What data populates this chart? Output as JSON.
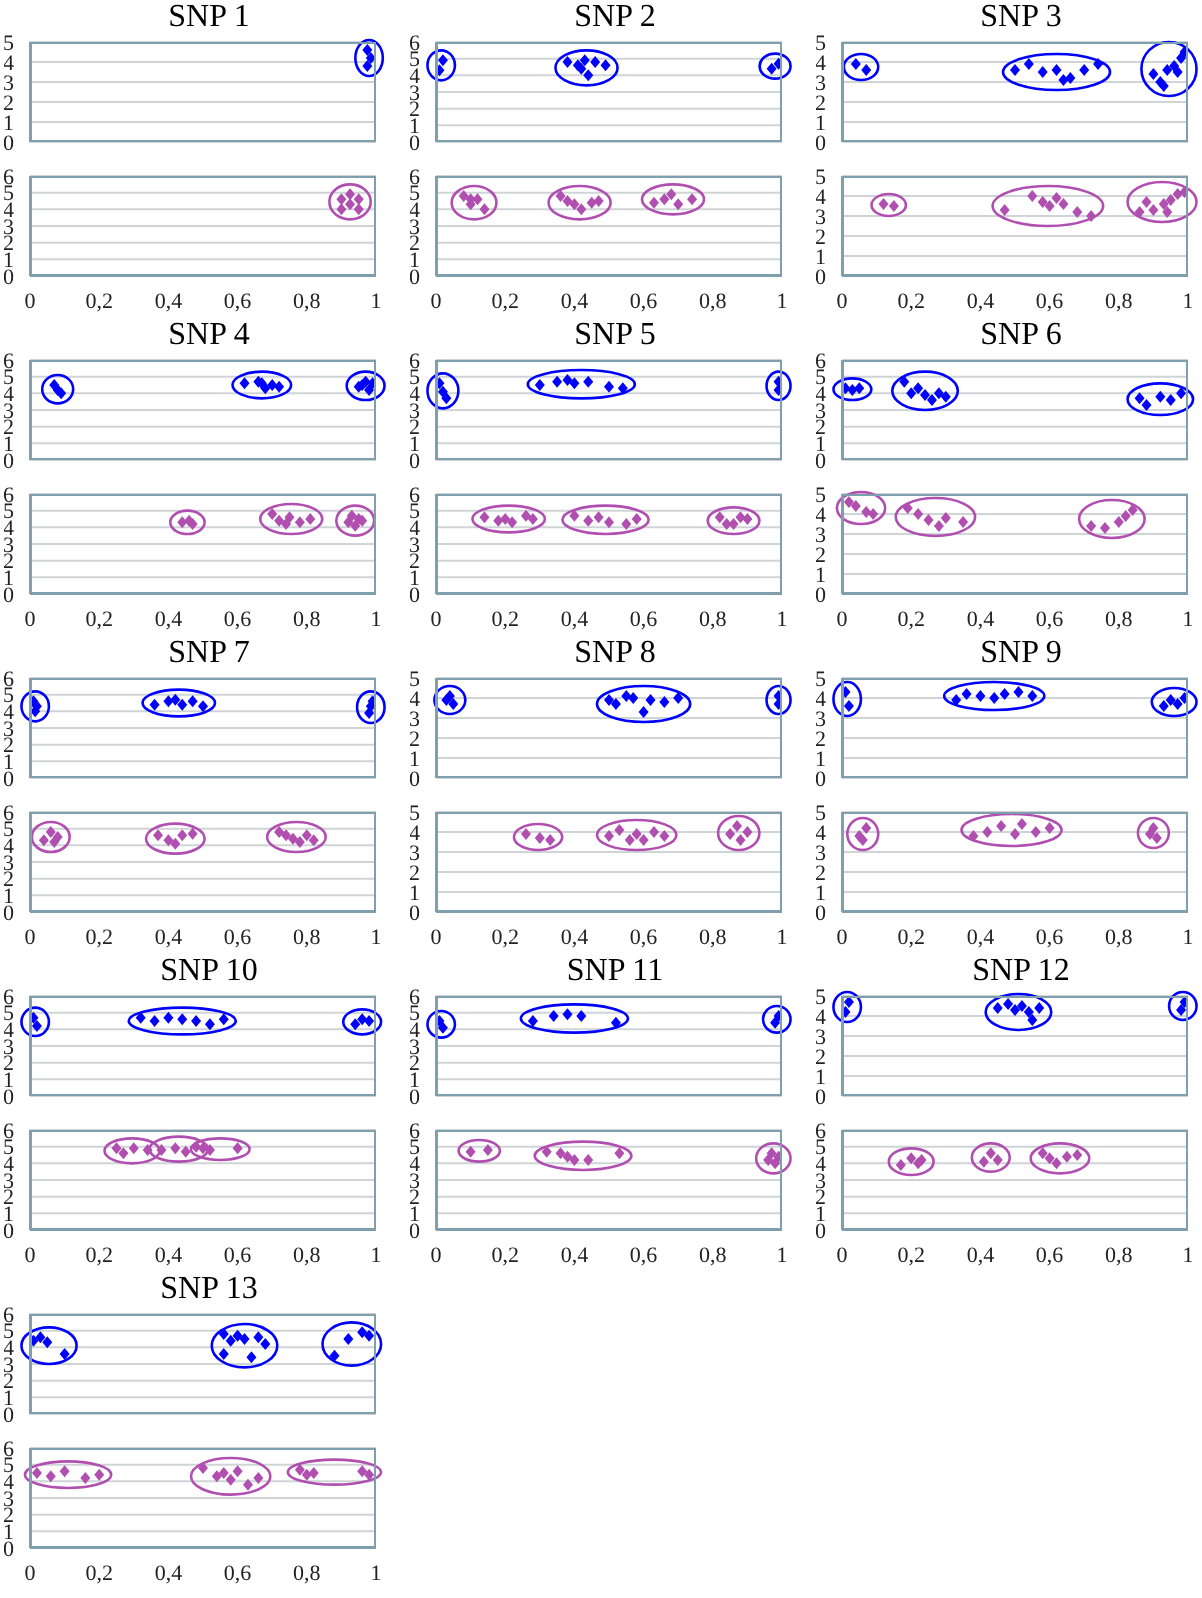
{
  "chart_data": [
    {
      "type": "scatter",
      "title": "SNP 1",
      "xlim": [
        0,
        1
      ],
      "ylim": [
        0,
        5
      ],
      "yticks": [
        0,
        1,
        2,
        3,
        4,
        5
      ],
      "grid": "y",
      "marker": "diamond",
      "tick_labels": "y",
      "series": [
        {
          "color": "#0000ff",
          "x": [
            0.975,
            0.985,
            0.975
          ],
          "values": [
            4.6,
            4.2,
            3.8
          ]
        }
      ]
    },
    {
      "type": "scatter",
      "xlim": [
        0,
        1
      ],
      "xticks": [
        {
          "value": 0,
          "label": "0"
        },
        {
          "value": 0.2,
          "label": "0,2"
        },
        {
          "value": 0.4,
          "label": "0,4"
        },
        {
          "value": 0.6,
          "label": "0,6"
        },
        {
          "value": 0.8,
          "label": "0,8"
        },
        {
          "value": 1,
          "label": "1"
        }
      ],
      "ylim": [
        0,
        6
      ],
      "yticks": [
        0,
        1,
        2,
        3,
        4,
        5,
        6
      ],
      "grid": "y",
      "marker": "diamond",
      "series": [
        {
          "color": "#b04fb0",
          "x": [
            0.9,
            0.9,
            0.925,
            0.925,
            0.95,
            0.95
          ],
          "values": [
            4.0,
            4.6,
            4.9,
            4.3,
            4.6,
            4.0
          ]
        }
      ]
    },
    {
      "type": "scatter",
      "title": "SNP 2",
      "xlim": [
        0,
        1
      ],
      "ylim": [
        0,
        6
      ],
      "yticks": [
        0,
        1,
        2,
        3,
        4,
        5,
        6
      ],
      "grid": "y",
      "marker": "diamond",
      "tick_labels": "y",
      "series": [
        {
          "color": "#0000ff",
          "x": [
            0.01,
            0.02
          ],
          "values": [
            4.3,
            4.9
          ]
        },
        {
          "color": "#0000ff",
          "x": [
            0.38,
            0.41,
            0.43,
            0.44,
            0.46,
            0.49,
            0.42
          ],
          "values": [
            4.8,
            4.6,
            4.9,
            4.0,
            4.8,
            4.6,
            4.4
          ]
        },
        {
          "color": "#0000ff",
          "x": [
            0.97,
            0.99
          ],
          "values": [
            4.4,
            4.7
          ]
        }
      ]
    },
    {
      "type": "scatter",
      "xlim": [
        0,
        1
      ],
      "xticks": [
        {
          "value": 0,
          "label": "0"
        },
        {
          "value": 0.2,
          "label": "0,2"
        },
        {
          "value": 0.4,
          "label": "0,4"
        },
        {
          "value": 0.6,
          "label": "0,6"
        },
        {
          "value": 0.8,
          "label": "0,8"
        },
        {
          "value": 1,
          "label": "1"
        }
      ],
      "ylim": [
        0,
        6
      ],
      "yticks": [
        0,
        1,
        2,
        3,
        4,
        5,
        6
      ],
      "grid": "y",
      "marker": "diamond",
      "series": [
        {
          "color": "#b04fb0",
          "x": [
            0.08,
            0.1,
            0.12,
            0.14,
            0.1
          ],
          "values": [
            4.8,
            4.3,
            4.6,
            4.0,
            4.6
          ]
        },
        {
          "color": "#b04fb0",
          "x": [
            0.36,
            0.38,
            0.4,
            0.42,
            0.45,
            0.47
          ],
          "values": [
            4.8,
            4.5,
            4.3,
            4.0,
            4.4,
            4.5
          ]
        },
        {
          "color": "#b04fb0",
          "x": [
            0.63,
            0.66,
            0.68,
            0.7,
            0.74
          ],
          "values": [
            4.4,
            4.6,
            4.9,
            4.3,
            4.6
          ]
        }
      ]
    },
    {
      "type": "scatter",
      "title": "SNP 3",
      "xlim": [
        0,
        1
      ],
      "ylim": [
        0,
        5
      ],
      "yticks": [
        0,
        1,
        2,
        3,
        4,
        5
      ],
      "grid": "y",
      "marker": "diamond",
      "tick_labels": "y",
      "series": [
        {
          "color": "#0000ff",
          "x": [
            0.04,
            0.07
          ],
          "values": [
            3.9,
            3.6
          ]
        },
        {
          "color": "#0000ff",
          "x": [
            0.5,
            0.54,
            0.58,
            0.62,
            0.66,
            0.7,
            0.74,
            0.64
          ],
          "values": [
            3.6,
            3.9,
            3.5,
            3.6,
            3.2,
            3.6,
            3.9,
            3.1
          ]
        },
        {
          "color": "#0000ff",
          "x": [
            0.9,
            0.92,
            0.94,
            0.96,
            0.98,
            0.99,
            0.93,
            0.97
          ],
          "values": [
            3.4,
            3.0,
            3.6,
            3.8,
            4.2,
            4.5,
            2.8,
            3.5
          ]
        }
      ]
    },
    {
      "type": "scatter",
      "xlim": [
        0,
        1
      ],
      "xticks": [
        {
          "value": 0,
          "label": "0"
        },
        {
          "value": 0.2,
          "label": "0,2"
        },
        {
          "value": 0.4,
          "label": "0,4"
        },
        {
          "value": 0.6,
          "label": "0,6"
        },
        {
          "value": 0.8,
          "label": "0,8"
        },
        {
          "value": 1,
          "label": "1"
        }
      ],
      "ylim": [
        0,
        5
      ],
      "yticks": [
        0,
        1,
        2,
        3,
        4,
        5
      ],
      "grid": "y",
      "marker": "diamond",
      "series": [
        {
          "color": "#b04fb0",
          "x": [
            0.12,
            0.15
          ],
          "values": [
            3.6,
            3.5
          ]
        },
        {
          "color": "#b04fb0",
          "x": [
            0.47,
            0.55,
            0.6,
            0.62,
            0.64,
            0.68,
            0.72,
            0.58
          ],
          "values": [
            3.3,
            4.0,
            3.5,
            3.9,
            3.6,
            3.2,
            3.0,
            3.7
          ]
        },
        {
          "color": "#b04fb0",
          "x": [
            0.86,
            0.88,
            0.9,
            0.93,
            0.95,
            0.97,
            0.99,
            0.94
          ],
          "values": [
            3.2,
            3.7,
            3.3,
            3.6,
            3.8,
            4.1,
            4.2,
            3.2
          ]
        }
      ]
    },
    {
      "type": "scatter",
      "title": "SNP 4",
      "xlim": [
        0,
        1
      ],
      "ylim": [
        0,
        6
      ],
      "yticks": [
        0,
        1,
        2,
        3,
        4,
        5,
        6
      ],
      "grid": "y",
      "marker": "diamond",
      "tick_labels": "y",
      "series": [
        {
          "color": "#0000ff",
          "x": [
            0.07,
            0.08,
            0.09
          ],
          "values": [
            4.5,
            4.2,
            4.0
          ]
        },
        {
          "color": "#0000ff",
          "x": [
            0.62,
            0.66,
            0.68,
            0.7,
            0.72,
            0.67
          ],
          "values": [
            4.6,
            4.7,
            4.3,
            4.5,
            4.4,
            4.6
          ]
        },
        {
          "color": "#0000ff",
          "x": [
            0.95,
            0.97,
            0.98,
            0.96,
            0.99
          ],
          "values": [
            4.4,
            4.7,
            4.2,
            4.5,
            4.6
          ]
        }
      ]
    },
    {
      "type": "scatter",
      "xlim": [
        0,
        1
      ],
      "xticks": [
        {
          "value": 0,
          "label": "0"
        },
        {
          "value": 0.2,
          "label": "0,2"
        },
        {
          "value": 0.4,
          "label": "0,4"
        },
        {
          "value": 0.6,
          "label": "0,6"
        },
        {
          "value": 0.8,
          "label": "0,8"
        },
        {
          "value": 1,
          "label": "1"
        }
      ],
      "ylim": [
        0,
        6
      ],
      "yticks": [
        0,
        1,
        2,
        3,
        4,
        5,
        6
      ],
      "grid": "y",
      "marker": "diamond",
      "series": [
        {
          "color": "#b04fb0",
          "x": [
            0.44,
            0.46,
            0.47
          ],
          "values": [
            4.3,
            4.4,
            4.2
          ]
        },
        {
          "color": "#b04fb0",
          "x": [
            0.7,
            0.72,
            0.74,
            0.78,
            0.81,
            0.75
          ],
          "values": [
            4.8,
            4.4,
            4.2,
            4.3,
            4.5,
            4.6
          ]
        },
        {
          "color": "#b04fb0",
          "x": [
            0.92,
            0.93,
            0.94,
            0.95,
            0.96
          ],
          "values": [
            4.3,
            4.7,
            4.1,
            4.5,
            4.4
          ]
        }
      ]
    },
    {
      "type": "scatter",
      "title": "SNP 5",
      "xlim": [
        0,
        1
      ],
      "ylim": [
        0,
        6
      ],
      "yticks": [
        0,
        1,
        2,
        3,
        4,
        5,
        6
      ],
      "grid": "y",
      "marker": "diamond",
      "tick_labels": "y",
      "series": [
        {
          "color": "#0000ff",
          "x": [
            0.01,
            0.02,
            0.03
          ],
          "values": [
            4.6,
            4.1,
            3.7
          ]
        },
        {
          "color": "#0000ff",
          "x": [
            0.3,
            0.35,
            0.38,
            0.4,
            0.44,
            0.5,
            0.54
          ],
          "values": [
            4.5,
            4.7,
            4.8,
            4.6,
            4.7,
            4.4,
            4.3
          ]
        },
        {
          "color": "#0000ff",
          "x": [
            0.99,
            0.99
          ],
          "values": [
            4.7,
            4.2
          ]
        }
      ]
    },
    {
      "type": "scatter",
      "xlim": [
        0,
        1
      ],
      "xticks": [
        {
          "value": 0,
          "label": "0"
        },
        {
          "value": 0.2,
          "label": "0,2"
        },
        {
          "value": 0.4,
          "label": "0,4"
        },
        {
          "value": 0.6,
          "label": "0,6"
        },
        {
          "value": 0.8,
          "label": "0,8"
        },
        {
          "value": 1,
          "label": "1"
        }
      ],
      "ylim": [
        0,
        6
      ],
      "yticks": [
        0,
        1,
        2,
        3,
        4,
        5,
        6
      ],
      "grid": "y",
      "marker": "diamond",
      "series": [
        {
          "color": "#b04fb0",
          "x": [
            0.14,
            0.18,
            0.2,
            0.22,
            0.26,
            0.28
          ],
          "values": [
            4.6,
            4.4,
            4.5,
            4.3,
            4.7,
            4.5
          ]
        },
        {
          "color": "#b04fb0",
          "x": [
            0.4,
            0.44,
            0.47,
            0.5,
            0.55,
            0.58
          ],
          "values": [
            4.7,
            4.4,
            4.6,
            4.3,
            4.2,
            4.5
          ]
        },
        {
          "color": "#b04fb0",
          "x": [
            0.82,
            0.84,
            0.86,
            0.88,
            0.9
          ],
          "values": [
            4.6,
            4.2,
            4.2,
            4.6,
            4.5
          ]
        }
      ]
    },
    {
      "type": "scatter",
      "title": "SNP 6",
      "xlim": [
        0,
        1
      ],
      "ylim": [
        0,
        6
      ],
      "yticks": [
        0,
        1,
        2,
        3,
        4,
        5,
        6
      ],
      "grid": "y",
      "marker": "diamond",
      "tick_labels": "y",
      "series": [
        {
          "color": "#0000ff",
          "x": [
            0.01,
            0.03,
            0.05
          ],
          "values": [
            4.3,
            4.2,
            4.3
          ]
        },
        {
          "color": "#0000ff",
          "x": [
            0.18,
            0.2,
            0.22,
            0.24,
            0.26,
            0.28,
            0.3
          ],
          "values": [
            4.7,
            4.0,
            4.3,
            3.9,
            3.6,
            4.0,
            3.8
          ]
        },
        {
          "color": "#0000ff",
          "x": [
            0.86,
            0.88,
            0.92,
            0.95,
            0.98
          ],
          "values": [
            3.7,
            3.3,
            3.8,
            3.6,
            4.0
          ]
        }
      ]
    },
    {
      "type": "scatter",
      "xlim": [
        0,
        1
      ],
      "xticks": [
        {
          "value": 0,
          "label": "0"
        },
        {
          "value": 0.2,
          "label": "0,2"
        },
        {
          "value": 0.4,
          "label": "0,4"
        },
        {
          "value": 0.6,
          "label": "0,6"
        },
        {
          "value": 0.8,
          "label": "0,8"
        },
        {
          "value": 1,
          "label": "1"
        }
      ],
      "ylim": [
        0,
        5
      ],
      "yticks": [
        0,
        1,
        2,
        3,
        4,
        5
      ],
      "grid": "y",
      "marker": "diamond",
      "series": [
        {
          "color": "#b04fb0",
          "x": [
            0.02,
            0.04,
            0.07,
            0.09
          ],
          "values": [
            4.6,
            4.4,
            4.1,
            4.0
          ]
        },
        {
          "color": "#b04fb0",
          "x": [
            0.19,
            0.22,
            0.25,
            0.28,
            0.3,
            0.35
          ],
          "values": [
            4.3,
            4.0,
            3.7,
            3.4,
            3.8,
            3.6
          ]
        },
        {
          "color": "#b04fb0",
          "x": [
            0.72,
            0.76,
            0.8,
            0.82,
            0.84
          ],
          "values": [
            3.4,
            3.3,
            3.6,
            3.9,
            4.2
          ]
        }
      ]
    },
    {
      "type": "scatter",
      "title": "SNP 7",
      "xlim": [
        0,
        1
      ],
      "ylim": [
        0,
        6
      ],
      "yticks": [
        0,
        1,
        2,
        3,
        4,
        5,
        6
      ],
      "grid": "y",
      "marker": "diamond",
      "tick_labels": "y",
      "series": [
        {
          "color": "#0000ff",
          "x": [
            0.01,
            0.02,
            0.015
          ],
          "values": [
            4.6,
            4.3,
            4.0
          ]
        },
        {
          "color": "#0000ff",
          "x": [
            0.36,
            0.4,
            0.42,
            0.44,
            0.47,
            0.5
          ],
          "values": [
            4.4,
            4.6,
            4.7,
            4.4,
            4.6,
            4.3
          ]
        },
        {
          "color": "#0000ff",
          "x": [
            0.98,
            0.99,
            0.985
          ],
          "values": [
            3.9,
            4.6,
            4.3
          ]
        }
      ]
    },
    {
      "type": "scatter",
      "xlim": [
        0,
        1
      ],
      "xticks": [
        {
          "value": 0,
          "label": "0"
        },
        {
          "value": 0.2,
          "label": "0,2"
        },
        {
          "value": 0.4,
          "label": "0,4"
        },
        {
          "value": 0.6,
          "label": "0,6"
        },
        {
          "value": 0.8,
          "label": "0,8"
        },
        {
          "value": 1,
          "label": "1"
        }
      ],
      "ylim": [
        0,
        6
      ],
      "yticks": [
        0,
        1,
        2,
        3,
        4,
        5,
        6
      ],
      "grid": "y",
      "marker": "diamond",
      "series": [
        {
          "color": "#b04fb0",
          "x": [
            0.04,
            0.06,
            0.07,
            0.08
          ],
          "values": [
            4.3,
            4.8,
            4.2,
            4.5
          ]
        },
        {
          "color": "#b04fb0",
          "x": [
            0.37,
            0.4,
            0.42,
            0.44,
            0.47
          ],
          "values": [
            4.6,
            4.3,
            4.1,
            4.6,
            4.7
          ]
        },
        {
          "color": "#b04fb0",
          "x": [
            0.72,
            0.74,
            0.76,
            0.78,
            0.82,
            0.8
          ],
          "values": [
            4.8,
            4.6,
            4.4,
            4.2,
            4.3,
            4.6
          ]
        }
      ]
    },
    {
      "type": "scatter",
      "title": "SNP 8",
      "xlim": [
        0,
        1
      ],
      "ylim": [
        0,
        5
      ],
      "yticks": [
        0,
        1,
        2,
        3,
        4,
        5
      ],
      "grid": "y",
      "marker": "diamond",
      "tick_labels": "y",
      "series": [
        {
          "color": "#0000ff",
          "x": [
            0.03,
            0.05,
            0.04
          ],
          "values": [
            3.9,
            3.7,
            4.1
          ]
        },
        {
          "color": "#0000ff",
          "x": [
            0.5,
            0.52,
            0.55,
            0.57,
            0.6,
            0.62,
            0.66,
            0.7
          ],
          "values": [
            3.9,
            3.7,
            4.1,
            4.0,
            3.3,
            3.9,
            3.8,
            4.0
          ]
        },
        {
          "color": "#0000ff",
          "x": [
            0.99,
            0.99
          ],
          "values": [
            3.7,
            4.1
          ]
        }
      ]
    },
    {
      "type": "scatter",
      "xlim": [
        0,
        1
      ],
      "xticks": [
        {
          "value": 0,
          "label": "0"
        },
        {
          "value": 0.2,
          "label": "0,2"
        },
        {
          "value": 0.4,
          "label": "0,4"
        },
        {
          "value": 0.6,
          "label": "0,6"
        },
        {
          "value": 0.8,
          "label": "0,8"
        },
        {
          "value": 1,
          "label": "1"
        }
      ],
      "ylim": [
        0,
        5
      ],
      "yticks": [
        0,
        1,
        2,
        3,
        4,
        5
      ],
      "grid": "y",
      "marker": "diamond",
      "series": [
        {
          "color": "#b04fb0",
          "x": [
            0.26,
            0.3,
            0.33
          ],
          "values": [
            3.9,
            3.7,
            3.6
          ]
        },
        {
          "color": "#b04fb0",
          "x": [
            0.5,
            0.53,
            0.56,
            0.58,
            0.6,
            0.63,
            0.66
          ],
          "values": [
            3.8,
            4.1,
            3.6,
            3.9,
            3.6,
            4.0,
            3.8
          ]
        },
        {
          "color": "#b04fb0",
          "x": [
            0.85,
            0.87,
            0.88,
            0.9
          ],
          "values": [
            3.9,
            4.3,
            3.6,
            4.0
          ]
        }
      ]
    },
    {
      "type": "scatter",
      "title": "SNP 9",
      "xlim": [
        0,
        1
      ],
      "ylim": [
        0,
        5
      ],
      "yticks": [
        0,
        1,
        2,
        3,
        4,
        5
      ],
      "grid": "y",
      "marker": "diamond",
      "tick_labels": "y",
      "series": [
        {
          "color": "#0000ff",
          "x": [
            0.01,
            0.02
          ],
          "values": [
            4.3,
            3.6
          ]
        },
        {
          "color": "#0000ff",
          "x": [
            0.33,
            0.36,
            0.4,
            0.44,
            0.47,
            0.51,
            0.55
          ],
          "values": [
            3.9,
            4.2,
            4.1,
            4.0,
            4.2,
            4.3,
            4.1
          ]
        },
        {
          "color": "#0000ff",
          "x": [
            0.93,
            0.95,
            0.97,
            0.99
          ],
          "values": [
            3.6,
            3.9,
            3.7,
            4.0
          ]
        }
      ]
    },
    {
      "type": "scatter",
      "xlim": [
        0,
        1
      ],
      "xticks": [
        {
          "value": 0,
          "label": "0"
        },
        {
          "value": 0.2,
          "label": "0,2"
        },
        {
          "value": 0.4,
          "label": "0,4"
        },
        {
          "value": 0.6,
          "label": "0,6"
        },
        {
          "value": 0.8,
          "label": "0,8"
        },
        {
          "value": 1,
          "label": "1"
        }
      ],
      "ylim": [
        0,
        5
      ],
      "yticks": [
        0,
        1,
        2,
        3,
        4,
        5
      ],
      "grid": "y",
      "marker": "diamond",
      "series": [
        {
          "color": "#b04fb0",
          "x": [
            0.05,
            0.07,
            0.06
          ],
          "values": [
            3.8,
            4.2,
            3.6
          ]
        },
        {
          "color": "#b04fb0",
          "x": [
            0.38,
            0.42,
            0.46,
            0.5,
            0.52,
            0.56,
            0.6
          ],
          "values": [
            3.8,
            4.0,
            4.3,
            3.9,
            4.4,
            4.0,
            4.2
          ]
        },
        {
          "color": "#b04fb0",
          "x": [
            0.89,
            0.9,
            0.91
          ],
          "values": [
            3.9,
            4.2,
            3.7
          ]
        }
      ]
    },
    {
      "type": "scatter",
      "title": "SNP 10",
      "xlim": [
        0,
        1
      ],
      "ylim": [
        0,
        6
      ],
      "yticks": [
        0,
        1,
        2,
        3,
        4,
        5,
        6
      ],
      "grid": "y",
      "marker": "diamond",
      "tick_labels": "y",
      "series": [
        {
          "color": "#0000ff",
          "x": [
            0.01,
            0.02
          ],
          "values": [
            4.7,
            4.2
          ]
        },
        {
          "color": "#0000ff",
          "x": [
            0.32,
            0.36,
            0.4,
            0.44,
            0.48,
            0.52,
            0.56
          ],
          "values": [
            4.7,
            4.5,
            4.7,
            4.6,
            4.5,
            4.3,
            4.6
          ]
        },
        {
          "color": "#0000ff",
          "x": [
            0.94,
            0.96,
            0.98
          ],
          "values": [
            4.3,
            4.6,
            4.5
          ]
        }
      ]
    },
    {
      "type": "scatter",
      "xlim": [
        0,
        1
      ],
      "xticks": [
        {
          "value": 0,
          "label": "0"
        },
        {
          "value": 0.2,
          "label": "0,2"
        },
        {
          "value": 0.4,
          "label": "0,4"
        },
        {
          "value": 0.6,
          "label": "0,6"
        },
        {
          "value": 0.8,
          "label": "0,8"
        },
        {
          "value": 1,
          "label": "1"
        }
      ],
      "ylim": [
        0,
        6
      ],
      "yticks": [
        0,
        1,
        2,
        3,
        4,
        5,
        6
      ],
      "grid": "y",
      "marker": "diamond",
      "series": [
        {
          "color": "#b04fb0",
          "x": [
            0.25,
            0.27,
            0.3,
            0.34
          ],
          "values": [
            4.9,
            4.6,
            4.9,
            4.8
          ]
        },
        {
          "color": "#b04fb0",
          "x": [
            0.38,
            0.42,
            0.45,
            0.48
          ],
          "values": [
            4.8,
            4.9,
            4.7,
            5.0
          ]
        },
        {
          "color": "#b04fb0",
          "x": [
            0.5,
            0.52,
            0.6
          ],
          "values": [
            4.9,
            4.8,
            4.9
          ]
        }
      ]
    },
    {
      "type": "scatter",
      "title": "SNP 11",
      "xlim": [
        0,
        1
      ],
      "ylim": [
        0,
        6
      ],
      "yticks": [
        0,
        1,
        2,
        3,
        4,
        5,
        6
      ],
      "grid": "y",
      "marker": "diamond",
      "tick_labels": "y",
      "series": [
        {
          "color": "#0000ff",
          "x": [
            0.01,
            0.02
          ],
          "values": [
            4.5,
            4.1
          ]
        },
        {
          "color": "#0000ff",
          "x": [
            0.28,
            0.34,
            0.38,
            0.42,
            0.52
          ],
          "values": [
            4.5,
            4.8,
            4.9,
            4.8,
            4.4
          ]
        },
        {
          "color": "#0000ff",
          "x": [
            0.98,
            0.99
          ],
          "values": [
            4.4,
            4.8
          ]
        }
      ]
    },
    {
      "type": "scatter",
      "xlim": [
        0,
        1
      ],
      "xticks": [
        {
          "value": 0,
          "label": "0"
        },
        {
          "value": 0.2,
          "label": "0,2"
        },
        {
          "value": 0.4,
          "label": "0,4"
        },
        {
          "value": 0.6,
          "label": "0,6"
        },
        {
          "value": 0.8,
          "label": "0,8"
        },
        {
          "value": 1,
          "label": "1"
        }
      ],
      "ylim": [
        0,
        6
      ],
      "yticks": [
        0,
        1,
        2,
        3,
        4,
        5,
        6
      ],
      "grid": "y",
      "marker": "diamond",
      "series": [
        {
          "color": "#b04fb0",
          "x": [
            0.1,
            0.15
          ],
          "values": [
            4.7,
            4.8
          ]
        },
        {
          "color": "#b04fb0",
          "x": [
            0.32,
            0.36,
            0.38,
            0.4,
            0.44,
            0.53
          ],
          "values": [
            4.7,
            4.6,
            4.4,
            4.2,
            4.2,
            4.6
          ]
        },
        {
          "color": "#b04fb0",
          "x": [
            0.96,
            0.97,
            0.98,
            0.99
          ],
          "values": [
            4.2,
            4.6,
            4.0,
            4.4
          ]
        }
      ]
    },
    {
      "type": "scatter",
      "title": "SNP 12",
      "xlim": [
        0,
        1
      ],
      "ylim": [
        0,
        5
      ],
      "yticks": [
        0,
        1,
        2,
        3,
        4,
        5
      ],
      "grid": "y",
      "marker": "diamond",
      "tick_labels": "y",
      "series": [
        {
          "color": "#0000ff",
          "x": [
            0.01,
            0.02
          ],
          "values": [
            4.2,
            4.7
          ]
        },
        {
          "color": "#0000ff",
          "x": [
            0.45,
            0.48,
            0.5,
            0.52,
            0.54,
            0.55,
            0.57
          ],
          "values": [
            4.4,
            4.6,
            4.3,
            4.5,
            4.2,
            3.8,
            4.4
          ]
        },
        {
          "color": "#0000ff",
          "x": [
            0.98,
            0.99
          ],
          "values": [
            4.3,
            4.7
          ]
        }
      ]
    },
    {
      "type": "scatter",
      "xlim": [
        0,
        1
      ],
      "xticks": [
        {
          "value": 0,
          "label": "0"
        },
        {
          "value": 0.2,
          "label": "0,2"
        },
        {
          "value": 0.4,
          "label": "0,4"
        },
        {
          "value": 0.6,
          "label": "0,6"
        },
        {
          "value": 0.8,
          "label": "0,8"
        },
        {
          "value": 1,
          "label": "1"
        }
      ],
      "ylim": [
        0,
        6
      ],
      "yticks": [
        0,
        1,
        2,
        3,
        4,
        5,
        6
      ],
      "grid": "y",
      "marker": "diamond",
      "series": [
        {
          "color": "#b04fb0",
          "x": [
            0.17,
            0.2,
            0.22,
            0.23
          ],
          "values": [
            3.9,
            4.3,
            4.0,
            4.2
          ]
        },
        {
          "color": "#b04fb0",
          "x": [
            0.41,
            0.43,
            0.45
          ],
          "values": [
            4.1,
            4.6,
            4.2
          ]
        },
        {
          "color": "#b04fb0",
          "x": [
            0.58,
            0.6,
            0.62,
            0.65,
            0.68
          ],
          "values": [
            4.6,
            4.3,
            4.0,
            4.4,
            4.5
          ]
        }
      ]
    },
    {
      "type": "scatter",
      "title": "SNP 13",
      "xlim": [
        0,
        1
      ],
      "ylim": [
        0,
        6
      ],
      "yticks": [
        0,
        1,
        2,
        3,
        4,
        5,
        6
      ],
      "grid": "y",
      "marker": "diamond",
      "tick_labels": "y",
      "series": [
        {
          "color": "#0000ff",
          "x": [
            0.01,
            0.03,
            0.05,
            0.1
          ],
          "values": [
            4.4,
            4.6,
            4.3,
            3.6
          ]
        },
        {
          "color": "#0000ff",
          "x": [
            0.56,
            0.58,
            0.6,
            0.62,
            0.64,
            0.66,
            0.68,
            0.56
          ],
          "values": [
            4.8,
            4.4,
            4.7,
            4.5,
            3.4,
            4.6,
            4.2,
            3.6
          ]
        },
        {
          "color": "#0000ff",
          "x": [
            0.88,
            0.92,
            0.96,
            0.98
          ],
          "values": [
            3.5,
            4.5,
            4.9,
            4.7
          ]
        }
      ]
    },
    {
      "type": "scatter",
      "xlim": [
        0,
        1
      ],
      "xticks": [
        {
          "value": 0,
          "label": "0"
        },
        {
          "value": 0.2,
          "label": "0,2"
        },
        {
          "value": 0.4,
          "label": "0,4"
        },
        {
          "value": 0.6,
          "label": "0,6"
        },
        {
          "value": 0.8,
          "label": "0,8"
        },
        {
          "value": 1,
          "label": "1"
        }
      ],
      "ylim": [
        0,
        6
      ],
      "yticks": [
        0,
        1,
        2,
        3,
        4,
        5,
        6
      ],
      "grid": "y",
      "marker": "diamond",
      "series": [
        {
          "color": "#b04fb0",
          "x": [
            0.02,
            0.06,
            0.1,
            0.16,
            0.2
          ],
          "values": [
            4.5,
            4.3,
            4.6,
            4.2,
            4.4
          ]
        },
        {
          "color": "#b04fb0",
          "x": [
            0.5,
            0.54,
            0.56,
            0.58,
            0.6,
            0.63,
            0.66
          ],
          "values": [
            4.8,
            4.3,
            4.5,
            4.1,
            4.6,
            3.8,
            4.2
          ]
        },
        {
          "color": "#b04fb0",
          "x": [
            0.78,
            0.8,
            0.82,
            0.96,
            0.98
          ],
          "values": [
            4.7,
            4.4,
            4.5,
            4.6,
            4.4
          ]
        }
      ]
    }
  ]
}
